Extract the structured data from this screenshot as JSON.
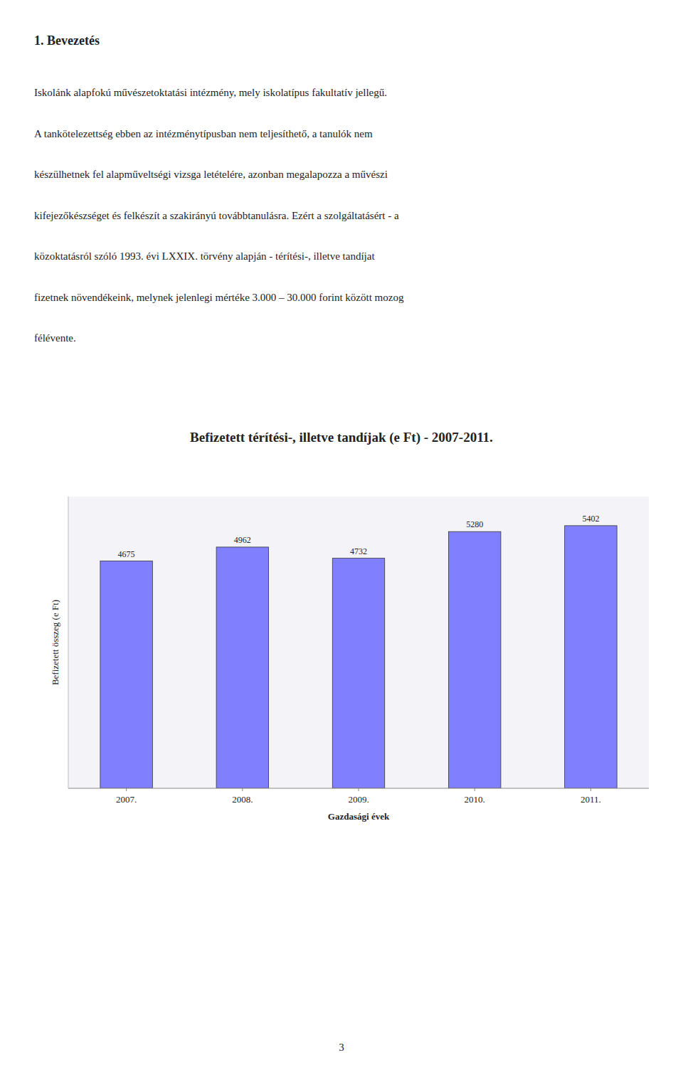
{
  "page": {
    "heading": "1. Bevezetés",
    "lines": [
      "Iskolánk alapfokú művészetoktatási intézmény, mely iskolatípus fakultatív jellegű.",
      "A tankötelezettség ebben az intézménytípusban nem teljesíthető, a tanulók nem",
      "készülhetnek fel alapműveltségi vizsga letételére, azonban megalapozza a művészi",
      "kifejezőkészséget és felkészít a szakirányú továbbtanulásra. Ezért a szolgáltatásért - a",
      "közoktatásról szóló 1993. évi LXXIX. törvény alapján - térítési-, illetve tandíjat",
      "fizetnek növendékeink, melynek jelenlegi mértéke 3.000 – 30.000  forint között mozog",
      "félévente."
    ],
    "page_number": "3"
  },
  "chart_data": {
    "type": "bar",
    "title": "Befizetett térítési-, illetve tandíjak (e Ft) - 2007-2011.",
    "categories": [
      "2007.",
      "2008.",
      "2009.",
      "2010.",
      "2011."
    ],
    "values": [
      4675,
      4962,
      4732,
      5280,
      5402
    ],
    "color": "#8080FF",
    "xlabel": "Gazdasági évek",
    "ylabel": "Befizetett összeg (e Ft)",
    "ylim": [
      0,
      6000
    ],
    "yticks": [],
    "tick_labels": "x",
    "data_labels": true,
    "grid": false
  }
}
